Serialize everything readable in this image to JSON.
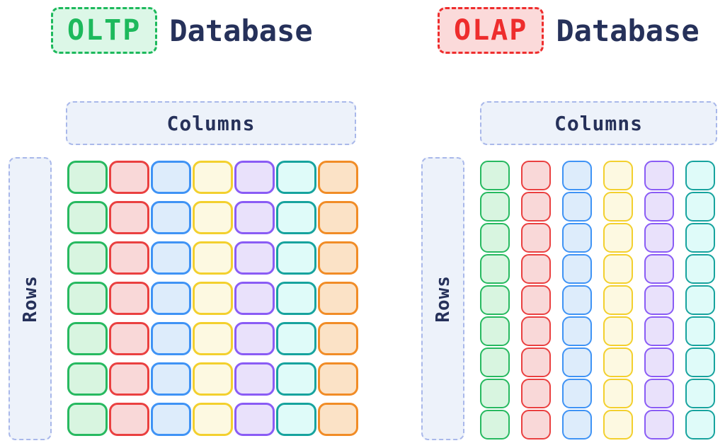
{
  "colors": {
    "heading_text": "#26315a",
    "frame_border": "#a9b8ea",
    "frame_fill": "#edf2fa",
    "oltp_accent": "#1db95c",
    "oltp_fill": "#dcf7e7",
    "olap_accent": "#ee2d2d",
    "olap_fill": "#fbdada"
  },
  "palette": {
    "green": {
      "border": "#27b960",
      "fill": "#d8f5e0"
    },
    "red": {
      "border": "#ea4040",
      "fill": "#f9d8d8"
    },
    "blue": {
      "border": "#3f93f5",
      "fill": "#ddecfb"
    },
    "yellow": {
      "border": "#f3d02e",
      "fill": "#fdf9e1"
    },
    "purple": {
      "border": "#8a5cf5",
      "fill": "#e9e1fb"
    },
    "teal": {
      "border": "#17a39e",
      "fill": "#dffbf9"
    },
    "orange": {
      "border": "#f18c26",
      "fill": "#fbe2c6"
    }
  },
  "oltp": {
    "badge_label": "OLTP",
    "title_text": "Database",
    "columns_label": "Columns",
    "rows_label": "Rows",
    "grid": {
      "orientation": "row-store",
      "rows": 7,
      "cols": 7,
      "color_by_column": [
        "green",
        "red",
        "blue",
        "yellow",
        "purple",
        "teal",
        "orange"
      ]
    }
  },
  "olap": {
    "badge_label": "OLAP",
    "title_text": "Database",
    "columns_label": "Columns",
    "rows_label": "Rows",
    "grid": {
      "orientation": "column-store",
      "rows": 9,
      "cols": 6,
      "color_by_column": [
        "green",
        "red",
        "blue",
        "yellow",
        "purple",
        "teal"
      ]
    }
  }
}
